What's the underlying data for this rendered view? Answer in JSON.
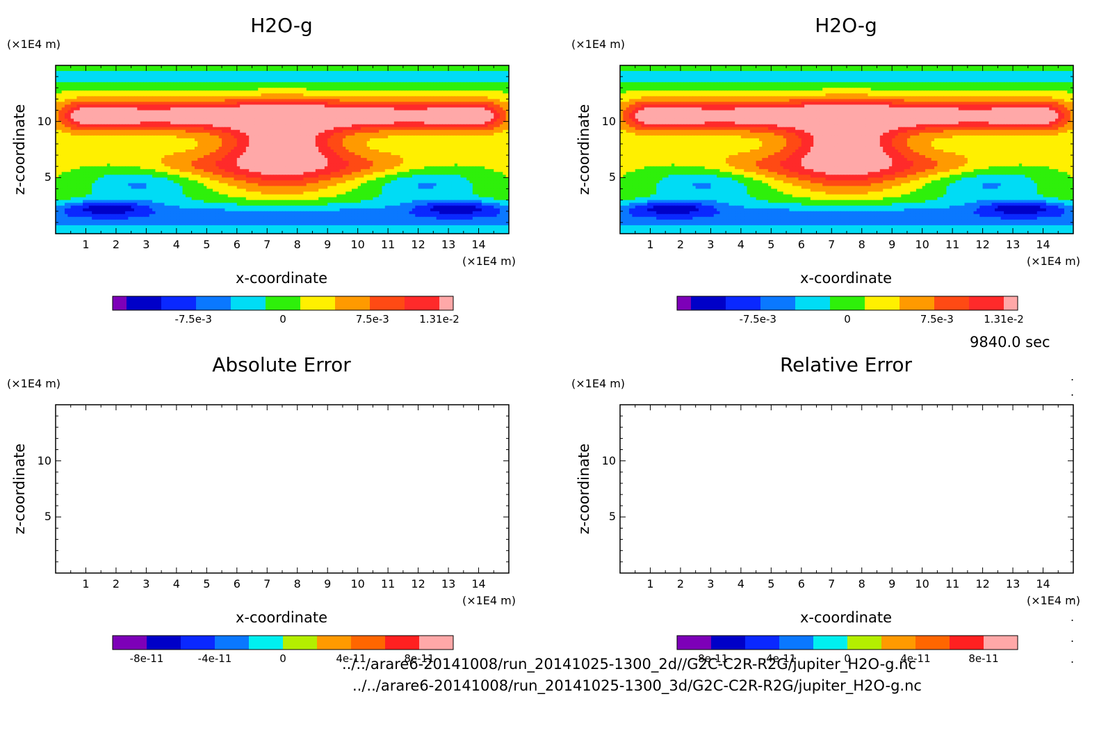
{
  "time_label": "9840.0 sec",
  "files": [
    "../../arare6-20141008/run_20141025-1300_2d//G2C-C2R-R2G/jupiter_H2O-g.nc",
    "../../arare6-20141008/run_20141025-1300_3d/G2C-C2R-R2G/jupiter_H2O-g.nc"
  ],
  "colors": {
    "levels": [
      "#7d00b8",
      "#0000c8",
      "#0a28ff",
      "#0a78ff",
      "#00dcf5",
      "#2ef00a",
      "#fff000",
      "#ff9a00",
      "#ff4a14",
      "#ff2a2a",
      "#ffa8a8"
    ],
    "error_levels": [
      "#7d00b8",
      "#0000c8",
      "#0a28ff",
      "#0a78ff",
      "#00f0f0",
      "#b4ef00",
      "#ff9a00",
      "#ff6600",
      "#ff2020",
      "#ffa8a8"
    ]
  },
  "chart_data": [
    {
      "type": "heatmap",
      "title": "H2O-g",
      "xlabel": "x-coordinate",
      "ylabel": "z-coordinate",
      "x_unit": "(×1E4 m)",
      "y_unit": "(×1E4 m)",
      "xlim": [
        0,
        15
      ],
      "ylim": [
        0,
        15
      ],
      "x_ticks": [
        "1",
        "2",
        "3",
        "4",
        "5",
        "6",
        "7",
        "8",
        "9",
        "10",
        "11",
        "12",
        "13",
        "14"
      ],
      "y_ticks": [
        "5",
        "10"
      ],
      "has_data": true,
      "colorbar": {
        "min": -0.0131,
        "max": 0.0131,
        "ticks": [
          "-7.5e-3",
          "0",
          "7.5e-3",
          "1.31e-2"
        ],
        "tick_values": [
          -0.0075,
          0,
          0.0075,
          0.0131
        ],
        "levels": 11
      }
    },
    {
      "type": "heatmap",
      "title": "H2O-g",
      "xlabel": "x-coordinate",
      "ylabel": "z-coordinate",
      "x_unit": "(×1E4 m)",
      "y_unit": "(×1E4 m)",
      "xlim": [
        0,
        15
      ],
      "ylim": [
        0,
        15
      ],
      "x_ticks": [
        "1",
        "2",
        "3",
        "4",
        "5",
        "6",
        "7",
        "8",
        "9",
        "10",
        "11",
        "12",
        "13",
        "14"
      ],
      "y_ticks": [
        "5",
        "10"
      ],
      "has_data": true,
      "colorbar": {
        "min": -0.0131,
        "max": 0.0131,
        "ticks": [
          "-7.5e-3",
          "0",
          "7.5e-3",
          "1.31e-2"
        ],
        "tick_values": [
          -0.0075,
          0,
          0.0075,
          0.0131
        ],
        "levels": 11
      }
    },
    {
      "type": "heatmap",
      "title": "Absolute Error",
      "xlabel": "x-coordinate",
      "ylabel": "z-coordinate",
      "x_unit": "(×1E4 m)",
      "y_unit": "(×1E4 m)",
      "xlim": [
        0,
        15
      ],
      "ylim": [
        0,
        15
      ],
      "x_ticks": [
        "1",
        "2",
        "3",
        "4",
        "5",
        "6",
        "7",
        "8",
        "9",
        "10",
        "11",
        "12",
        "13",
        "14"
      ],
      "y_ticks": [
        "5",
        "10"
      ],
      "has_data": false,
      "colorbar": {
        "min": -1e-10,
        "max": 1e-10,
        "ticks": [
          "-8e-11",
          "-4e-11",
          "0",
          "4e-11",
          "8e-11"
        ],
        "tick_values": [
          -8e-11,
          -4e-11,
          0,
          4e-11,
          8e-11
        ],
        "levels": 10
      }
    },
    {
      "type": "heatmap",
      "title": "Relative Error",
      "xlabel": "x-coordinate",
      "ylabel": "z-coordinate",
      "x_unit": "(×1E4 m)",
      "y_unit": "(×1E4 m)",
      "xlim": [
        0,
        15
      ],
      "ylim": [
        0,
        15
      ],
      "x_ticks": [
        "1",
        "2",
        "3",
        "4",
        "5",
        "6",
        "7",
        "8",
        "9",
        "10",
        "11",
        "12",
        "13",
        "14"
      ],
      "y_ticks": [
        "5",
        "10"
      ],
      "has_data": false,
      "colorbar": {
        "min": -1e-10,
        "max": 1e-10,
        "ticks": [
          "-8e-11",
          "-4e-11",
          "0",
          "4e-11",
          "8e-11"
        ],
        "tick_values": [
          -8e-11,
          -4e-11,
          0,
          4e-11,
          8e-11
        ],
        "levels": 10
      }
    }
  ]
}
